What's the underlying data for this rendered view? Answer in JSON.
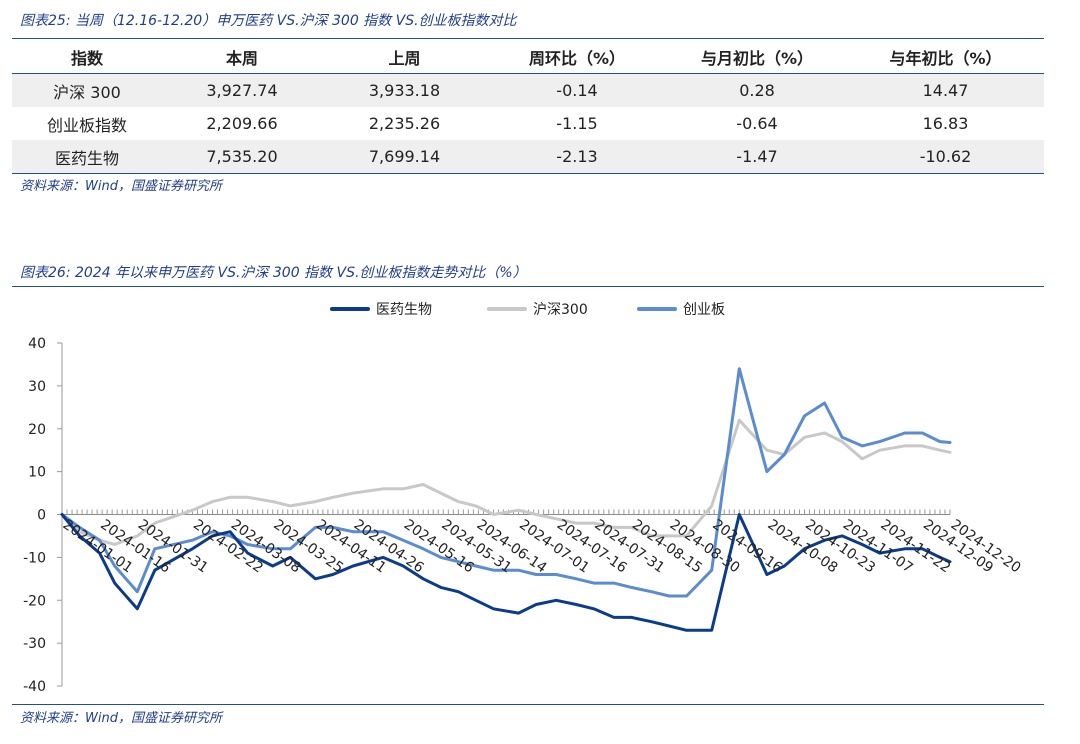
{
  "table_caption": "图表25: 当周（12.16-12.20）申万医药 VS.沪深 300 指数 VS.创业板指数对比",
  "table": {
    "headers": [
      "指数",
      "本周",
      "上周",
      "周环比（%）",
      "与月初比（%）",
      "与年初比（%）"
    ],
    "rows": [
      [
        "沪深 300",
        "3,927.74",
        "3,933.18",
        "-0.14",
        "0.28",
        "14.47"
      ],
      [
        "创业板指数",
        "2,209.66",
        "2,235.26",
        "-1.15",
        "-0.64",
        "16.83"
      ],
      [
        "医药生物",
        "7,535.20",
        "7,699.14",
        "-2.13",
        "-1.47",
        "-10.62"
      ]
    ]
  },
  "table_source": "资料来源：Wind，国盛证券研究所",
  "chart_caption": "图表26: 2024 年以来申万医药 VS.沪深 300 指数 VS.创业板指数走势对比（%）",
  "chart_source": "资料来源：Wind，国盛证券研究所",
  "colors": {
    "accent": "#1f4e9c",
    "medical": "#0b3c8c",
    "hs300": "#c8c8c8",
    "gem": "#5b8bd0",
    "caption": "#1f3e8c"
  },
  "chart_data": {
    "type": "line",
    "title": "",
    "xlabel": "",
    "ylabel": "",
    "ylim": [
      -40,
      40
    ],
    "yticks": [
      40,
      30,
      20,
      10,
      0,
      -10,
      -20,
      -30,
      -40
    ],
    "x_tick_labels": [
      "2024-01-01",
      "2024-01-16",
      "2024-01-31",
      "2024-02-22",
      "2024-03-08",
      "2024-03-25",
      "2024-04-11",
      "2024-04-26",
      "2024-05-16",
      "2024-05-31",
      "2024-06-14",
      "2024-07-01",
      "2024-07-16",
      "2024-07-31",
      "2024-08-15",
      "2024-08-30",
      "2024-09-16",
      "2024-10-08",
      "2024-10-23",
      "2024-11-07",
      "2024-11-22",
      "2024-12-09",
      "2024-12-20"
    ],
    "legend_position": "top",
    "grid": false,
    "x": [
      "2024-01-01",
      "2024-01-08",
      "2024-01-16",
      "2024-01-22",
      "2024-01-31",
      "2024-02-07",
      "2024-02-22",
      "2024-03-01",
      "2024-03-08",
      "2024-03-15",
      "2024-03-25",
      "2024-04-01",
      "2024-04-11",
      "2024-04-18",
      "2024-04-26",
      "2024-05-08",
      "2024-05-16",
      "2024-05-24",
      "2024-05-31",
      "2024-06-07",
      "2024-06-14",
      "2024-06-21",
      "2024-07-01",
      "2024-07-08",
      "2024-07-16",
      "2024-07-24",
      "2024-07-31",
      "2024-08-08",
      "2024-08-15",
      "2024-08-23",
      "2024-08-30",
      "2024-09-06",
      "2024-09-16",
      "2024-09-27",
      "2024-10-08",
      "2024-10-15",
      "2024-10-23",
      "2024-10-31",
      "2024-11-07",
      "2024-11-15",
      "2024-11-22",
      "2024-12-02",
      "2024-12-09",
      "2024-12-16",
      "2024-12-20"
    ],
    "series": [
      {
        "name": "医药生物",
        "values": [
          0,
          -5,
          -9,
          -16,
          -22,
          -13,
          -8,
          -5,
          -4,
          -9,
          -12,
          -10,
          -15,
          -14,
          -12,
          -10,
          -12,
          -15,
          -17,
          -18,
          -20,
          -22,
          -23,
          -21,
          -20,
          -21,
          -22,
          -24,
          -24,
          -25,
          -26,
          -27,
          -27,
          0,
          -14,
          -12,
          -8,
          -6,
          -5,
          -7,
          -9,
          -8,
          -8,
          -10,
          -11
        ]
      },
      {
        "name": "沪深300",
        "values": [
          0,
          -4,
          -6,
          -7,
          -5,
          -2,
          1,
          3,
          4,
          4,
          3,
          2,
          3,
          4,
          5,
          6,
          6,
          7,
          5,
          3,
          2,
          0,
          1,
          0,
          -1,
          -2,
          -2,
          -3,
          -3,
          -5,
          -5,
          -5,
          2,
          22,
          15,
          14,
          18,
          19,
          17,
          13,
          15,
          16,
          16,
          15,
          14.5
        ]
      },
      {
        "name": "创业板",
        "values": [
          0,
          -3,
          -6,
          -12,
          -18,
          -8,
          -6,
          -4,
          -5,
          -7,
          -8,
          -8,
          -3,
          -3,
          -4,
          -4,
          -6,
          -8,
          -10,
          -11,
          -12,
          -13,
          -13,
          -14,
          -14,
          -15,
          -16,
          -16,
          -17,
          -18,
          -19,
          -19,
          -13,
          34,
          10,
          14,
          23,
          26,
          18,
          16,
          17,
          19,
          19,
          17,
          16.8
        ]
      }
    ]
  }
}
